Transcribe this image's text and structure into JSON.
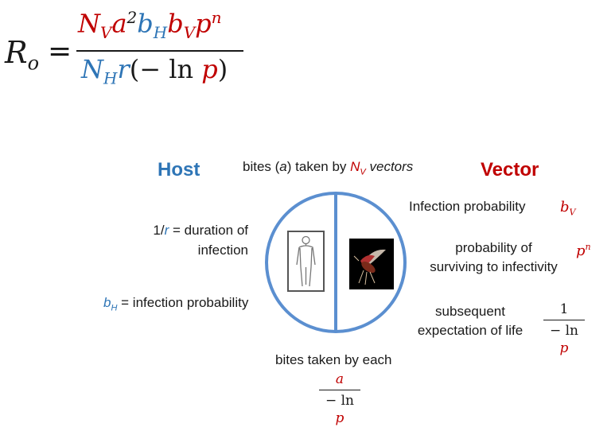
{
  "formula": {
    "lhs": "R",
    "lhs_sub": "o",
    "equals": "=",
    "num": {
      "NV": "N",
      "NV_sub": "V",
      "a": "a",
      "a_sup": "2",
      "bH": "b",
      "bH_sub": "H",
      "bV": "b",
      "bV_sub": "V",
      "p": "p",
      "p_sup": "n"
    },
    "den": {
      "NH": "N",
      "NH_sub": "H",
      "r": "r",
      "open": "(− ln ",
      "p": "p",
      "close": ")"
    }
  },
  "headings": {
    "host": "Host",
    "vector": "Vector"
  },
  "top_label": {
    "before": "bites (",
    "a": "a",
    "mid": ") taken by ",
    "N": "N",
    "N_sub": "V",
    "after": " vectors"
  },
  "host": {
    "duration_prefix": "1/",
    "duration_r": "r",
    "duration_line1_rest": " = duration of",
    "duration_line2": "infection",
    "bH": "b",
    "bH_sub": "H",
    "infection_prob": " = infection probability"
  },
  "vector": {
    "infection_prob": "Infection probability",
    "bV": "b",
    "bV_sub": "V",
    "surv_line1": "probability of",
    "surv_line2": "surviving to infectivity",
    "pn": "p",
    "pn_sup": "n",
    "subseq_line1": "subsequent",
    "subseq_line2": "expectation of life",
    "frac_num": "1",
    "frac_den_prefix": "− ln ",
    "frac_den_p": "p"
  },
  "bottom": {
    "label": "bites taken by each",
    "frac_num": "a",
    "frac_den_prefix": "− ln ",
    "frac_den_p": "p"
  },
  "colors": {
    "red": "#c00000",
    "blue": "#2e75b6",
    "circle": "#5b8fd0"
  },
  "icons": [
    "human-figure-icon",
    "mosquito-icon"
  ]
}
